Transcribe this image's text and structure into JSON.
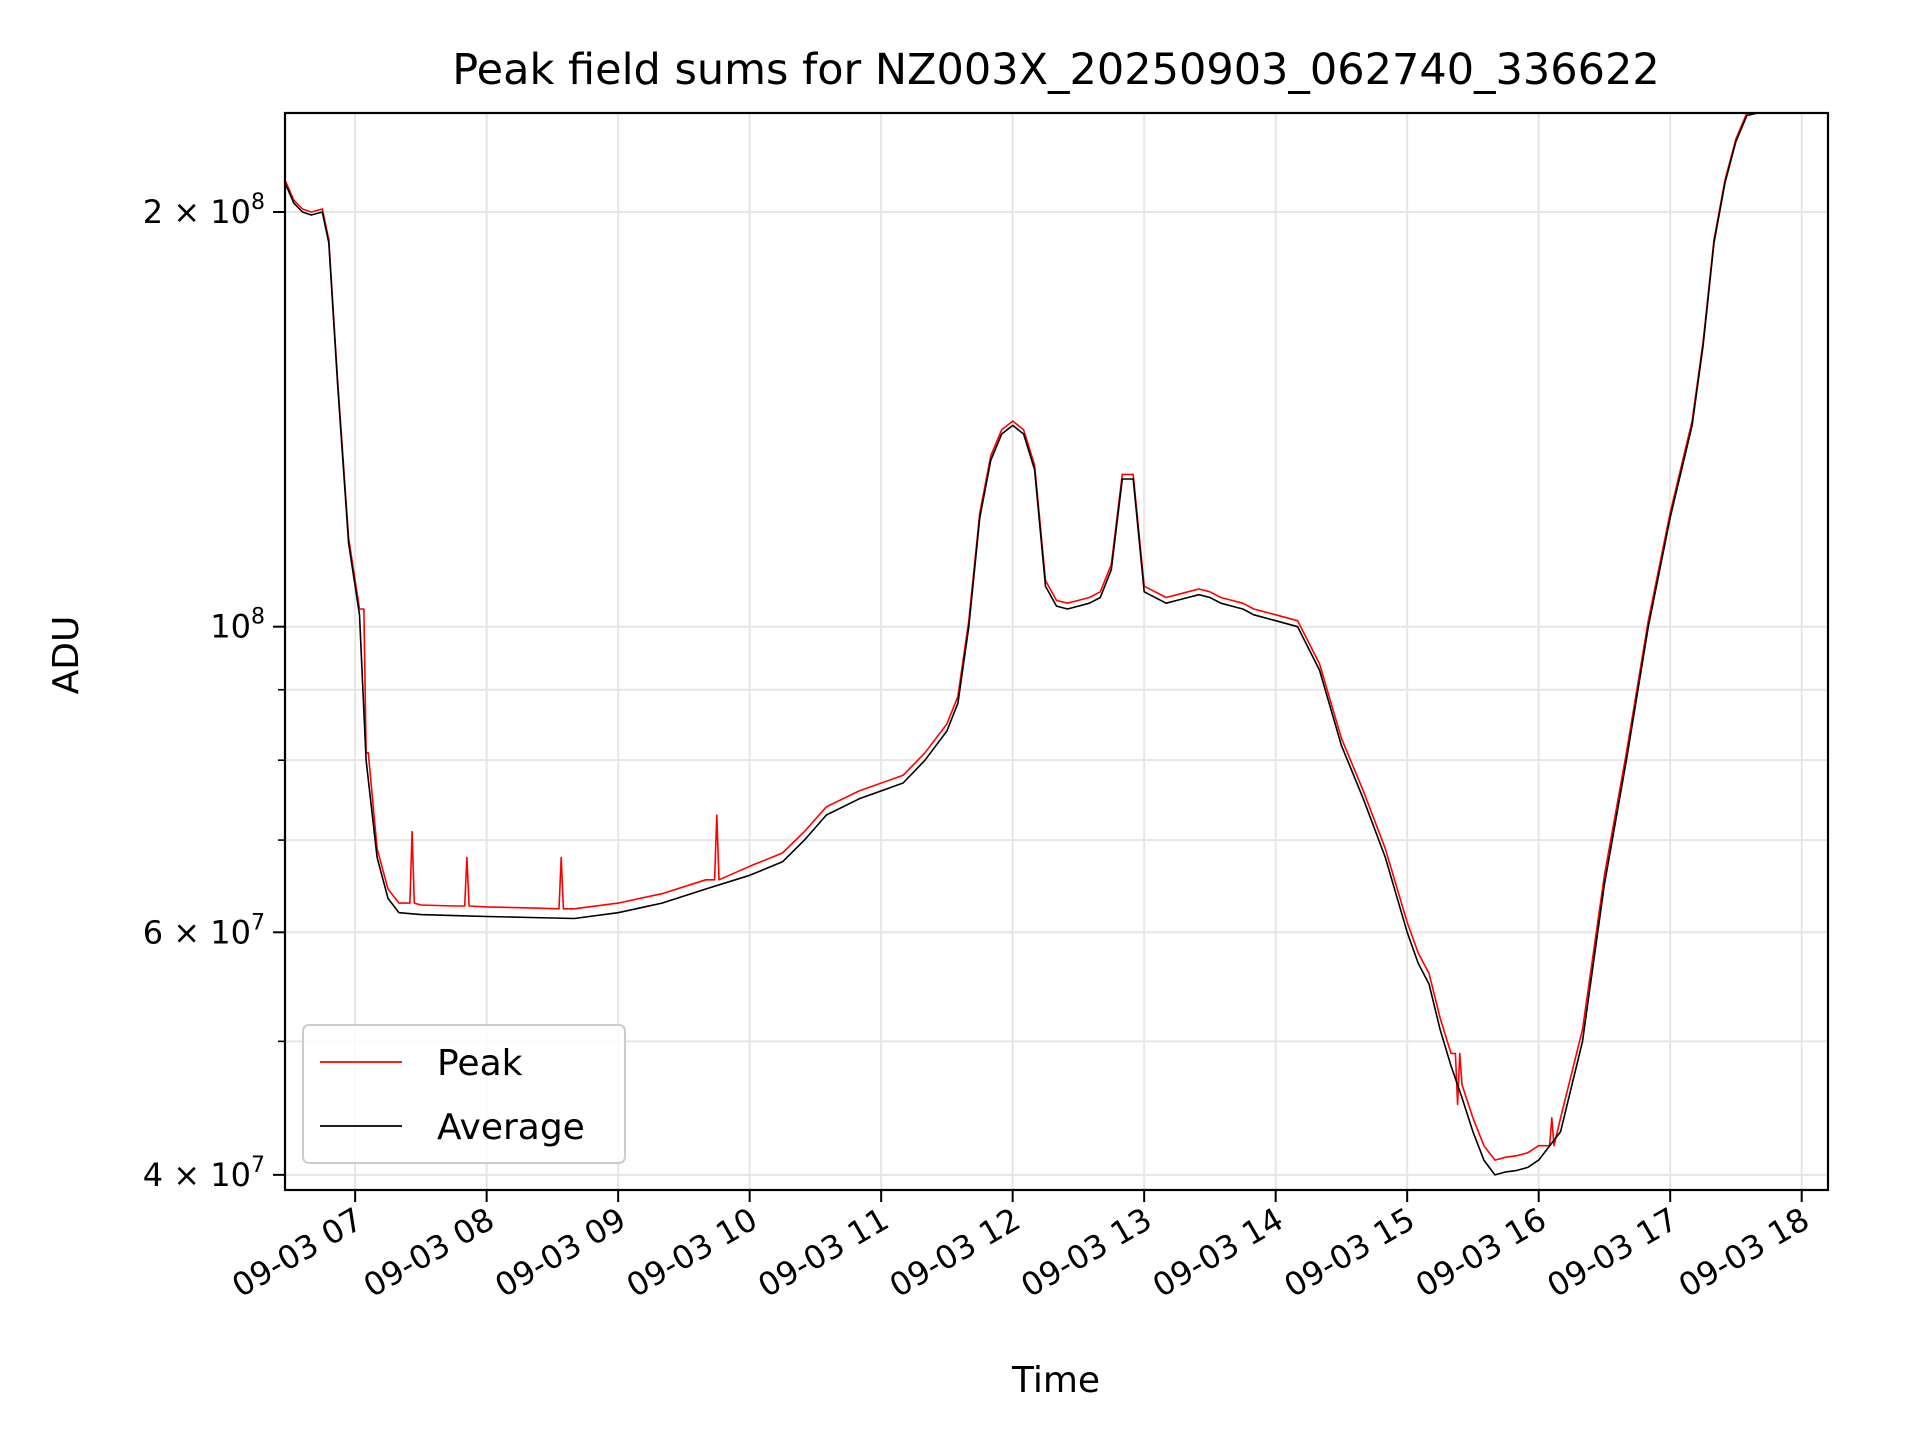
{
  "chart_data": {
    "type": "line",
    "title": "Peak field sums for NZ003X_20250903_062740_336622",
    "xlabel": "Time",
    "ylabel": "ADU",
    "yscale": "log",
    "ylim": [
      39000000,
      236000000
    ],
    "xlim": [
      "09-03 06:28",
      "09-03 18:12"
    ],
    "grid": true,
    "legend_position": "lower-left",
    "x_ticks": [
      "09-03 07",
      "09-03 08",
      "09-03 09",
      "09-03 10",
      "09-03 11",
      "09-03 12",
      "09-03 13",
      "09-03 14",
      "09-03 15",
      "09-03 16",
      "09-03 17",
      "09-03 18"
    ],
    "y_ticks": [
      {
        "value": 200000000,
        "mantissa": "2",
        "exponent": "8"
      },
      {
        "value": 100000000,
        "mantissa": "",
        "exponent": "8"
      },
      {
        "value": 60000000,
        "mantissa": "6",
        "exponent": "7"
      },
      {
        "value": 40000000,
        "mantissa": "4",
        "exponent": "7"
      }
    ],
    "series": [
      {
        "name": "Average",
        "color": "#000000",
        "x": [
          "09-03 06:28",
          "09-03 06:32",
          "09-03 06:36",
          "09-03 06:40",
          "09-03 06:45",
          "09-03 06:48",
          "09-03 06:52",
          "09-03 06:57",
          "09-03 07:02",
          "09-03 07:05",
          "09-03 07:10",
          "09-03 07:15",
          "09-03 07:20",
          "09-03 07:30",
          "09-03 07:45",
          "09-03 08:00",
          "09-03 08:20",
          "09-03 08:40",
          "09-03 09:00",
          "09-03 09:20",
          "09-03 09:40",
          "09-03 10:00",
          "09-03 10:15",
          "09-03 10:25",
          "09-03 10:35",
          "09-03 10:50",
          "09-03 11:10",
          "09-03 11:20",
          "09-03 11:30",
          "09-03 11:35",
          "09-03 11:40",
          "09-03 11:45",
          "09-03 11:50",
          "09-03 11:55",
          "09-03 12:00",
          "09-03 12:05",
          "09-03 12:10",
          "09-03 12:15",
          "09-03 12:20",
          "09-03 12:25",
          "09-03 12:30",
          "09-03 12:35",
          "09-03 12:40",
          "09-03 12:45",
          "09-03 12:50",
          "09-03 12:55",
          "09-03 13:00",
          "09-03 13:10",
          "09-03 13:15",
          "09-03 13:20",
          "09-03 13:25",
          "09-03 13:30",
          "09-03 13:35",
          "09-03 13:40",
          "09-03 13:45",
          "09-03 13:50",
          "09-03 14:00",
          "09-03 14:10",
          "09-03 14:20",
          "09-03 14:30",
          "09-03 14:40",
          "09-03 14:50",
          "09-03 15:00",
          "09-03 15:05",
          "09-03 15:10",
          "09-03 15:15",
          "09-03 15:20",
          "09-03 15:25",
          "09-03 15:30",
          "09-03 15:35",
          "09-03 15:40",
          "09-03 15:45",
          "09-03 15:50",
          "09-03 15:55",
          "09-03 16:00",
          "09-03 16:10",
          "09-03 16:20",
          "09-03 16:30",
          "09-03 16:40",
          "09-03 16:50",
          "09-03 17:00",
          "09-03 17:10",
          "09-03 17:15",
          "09-03 17:20",
          "09-03 17:25",
          "09-03 17:30",
          "09-03 17:35",
          "09-03 17:40",
          "09-03 17:45",
          "09-03 17:50",
          "09-03 17:55",
          "09-03 18:00",
          "09-03 18:03",
          "09-03 18:06",
          "09-03 18:12"
        ],
        "y": [
          210000000,
          203000000,
          200000000,
          199000000,
          200000000,
          190000000,
          150000000,
          115000000,
          102000000,
          80000000,
          68000000,
          63500000,
          62000000,
          61800000,
          61700000,
          61600000,
          61500000,
          61400000,
          62000000,
          63000000,
          64500000,
          66000000,
          67500000,
          70000000,
          73000000,
          75000000,
          77000000,
          80000000,
          84000000,
          88000000,
          100000000,
          120000000,
          132000000,
          138000000,
          140000000,
          138000000,
          130000000,
          107000000,
          103500000,
          103000000,
          103500000,
          104000000,
          105000000,
          110000000,
          128000000,
          128000000,
          106000000,
          104000000,
          104500000,
          105000000,
          105500000,
          105000000,
          104000000,
          103500000,
          103000000,
          102000000,
          101000000,
          100000000,
          93000000,
          82000000,
          75000000,
          68000000,
          60000000,
          57000000,
          55000000,
          51000000,
          48000000,
          45500000,
          43000000,
          41000000,
          40000000,
          40200000,
          40300000,
          40500000,
          41000000,
          43000000,
          50000000,
          65000000,
          80000000,
          100000000,
          120000000,
          140000000,
          160000000,
          190000000,
          210000000,
          225000000,
          235000000,
          236000000,
          236000000,
          236000000,
          236000000,
          236000000,
          236000000,
          236000000,
          236000000
        ]
      },
      {
        "name": "Peak",
        "color": "#ff0000",
        "x": [
          "09-03 06:28",
          "09-03 06:32",
          "09-03 06:36",
          "09-03 06:40",
          "09-03 06:45",
          "09-03 06:48",
          "09-03 06:52",
          "09-03 06:57",
          "09-03 07:02",
          "09-03 07:04",
          "09-03 07:05",
          "09-03 07:06",
          "09-03 07:10",
          "09-03 07:15",
          "09-03 07:20",
          "09-03 07:25",
          "09-03 07:26",
          "09-03 07:27",
          "09-03 07:30",
          "09-03 07:45",
          "09-03 07:50",
          "09-03 07:51",
          "09-03 07:52",
          "09-03 08:00",
          "09-03 08:20",
          "09-03 08:33",
          "09-03 08:34",
          "09-03 08:35",
          "09-03 08:40",
          "09-03 09:00",
          "09-03 09:20",
          "09-03 09:40",
          "09-03 09:44",
          "09-03 09:45",
          "09-03 09:46",
          "09-03 10:00",
          "09-03 10:15",
          "09-03 10:25",
          "09-03 10:35",
          "09-03 10:50",
          "09-03 11:10",
          "09-03 11:20",
          "09-03 11:30",
          "09-03 11:35",
          "09-03 11:40",
          "09-03 11:45",
          "09-03 11:50",
          "09-03 11:55",
          "09-03 12:00",
          "09-03 12:05",
          "09-03 12:10",
          "09-03 12:15",
          "09-03 12:20",
          "09-03 12:25",
          "09-03 12:30",
          "09-03 12:35",
          "09-03 12:40",
          "09-03 12:45",
          "09-03 12:50",
          "09-03 12:55",
          "09-03 13:00",
          "09-03 13:10",
          "09-03 13:15",
          "09-03 13:20",
          "09-03 13:25",
          "09-03 13:30",
          "09-03 13:35",
          "09-03 13:40",
          "09-03 13:45",
          "09-03 13:50",
          "09-03 14:00",
          "09-03 14:10",
          "09-03 14:20",
          "09-03 14:30",
          "09-03 14:40",
          "09-03 14:50",
          "09-03 15:00",
          "09-03 15:05",
          "09-03 15:10",
          "09-03 15:15",
          "09-03 15:20",
          "09-03 15:22",
          "09-03 15:23",
          "09-03 15:24",
          "09-03 15:25",
          "09-03 15:30",
          "09-03 15:35",
          "09-03 15:40",
          "09-03 15:45",
          "09-03 15:50",
          "09-03 15:55",
          "09-03 16:00",
          "09-03 16:05",
          "09-03 16:06",
          "09-03 16:07",
          "09-03 16:10",
          "09-03 16:20",
          "09-03 16:30",
          "09-03 16:40",
          "09-03 16:50",
          "09-03 17:00",
          "09-03 17:10",
          "09-03 17:15",
          "09-03 17:20",
          "09-03 17:25",
          "09-03 17:30",
          "09-03 17:35",
          "09-03 17:40",
          "09-03 17:45",
          "09-03 17:50",
          "09-03 17:55",
          "09-03 18:00",
          "09-03 18:03",
          "09-03 18:06",
          "09-03 18:12"
        ],
        "y": [
          211000000,
          204000000,
          201000000,
          200000000,
          201000000,
          191000000,
          151000000,
          116000000,
          103000000,
          103000000,
          81000000,
          81000000,
          69000000,
          64500000,
          63000000,
          63000000,
          71000000,
          63000000,
          62800000,
          62700000,
          62700000,
          68000000,
          62700000,
          62600000,
          62500000,
          62400000,
          68000000,
          62400000,
          62400000,
          63000000,
          64000000,
          65500000,
          65500000,
          73000000,
          65500000,
          67000000,
          68500000,
          71000000,
          74000000,
          76000000,
          78000000,
          81000000,
          85000000,
          89000000,
          101000000,
          121000000,
          133000000,
          139000000,
          141000000,
          139000000,
          131000000,
          108000000,
          104500000,
          104000000,
          104500000,
          105000000,
          106000000,
          111000000,
          129000000,
          129000000,
          107000000,
          105000000,
          105500000,
          106000000,
          106500000,
          106000000,
          105000000,
          104500000,
          104000000,
          103000000,
          102000000,
          101000000,
          94000000,
          83000000,
          76000000,
          69000000,
          61000000,
          58000000,
          56000000,
          52000000,
          49000000,
          49000000,
          45000000,
          49000000,
          46500000,
          44000000,
          42000000,
          41000000,
          41200000,
          41300000,
          41500000,
          42000000,
          42000000,
          44000000,
          42000000,
          44000000,
          51000000,
          66000000,
          81000000,
          101000000,
          121000000,
          141000000,
          161000000,
          191000000,
          211000000,
          226000000,
          236000000,
          236000000,
          236000000,
          236000000,
          236000000,
          236000000,
          236000000,
          236000000,
          236000000
        ]
      }
    ]
  }
}
